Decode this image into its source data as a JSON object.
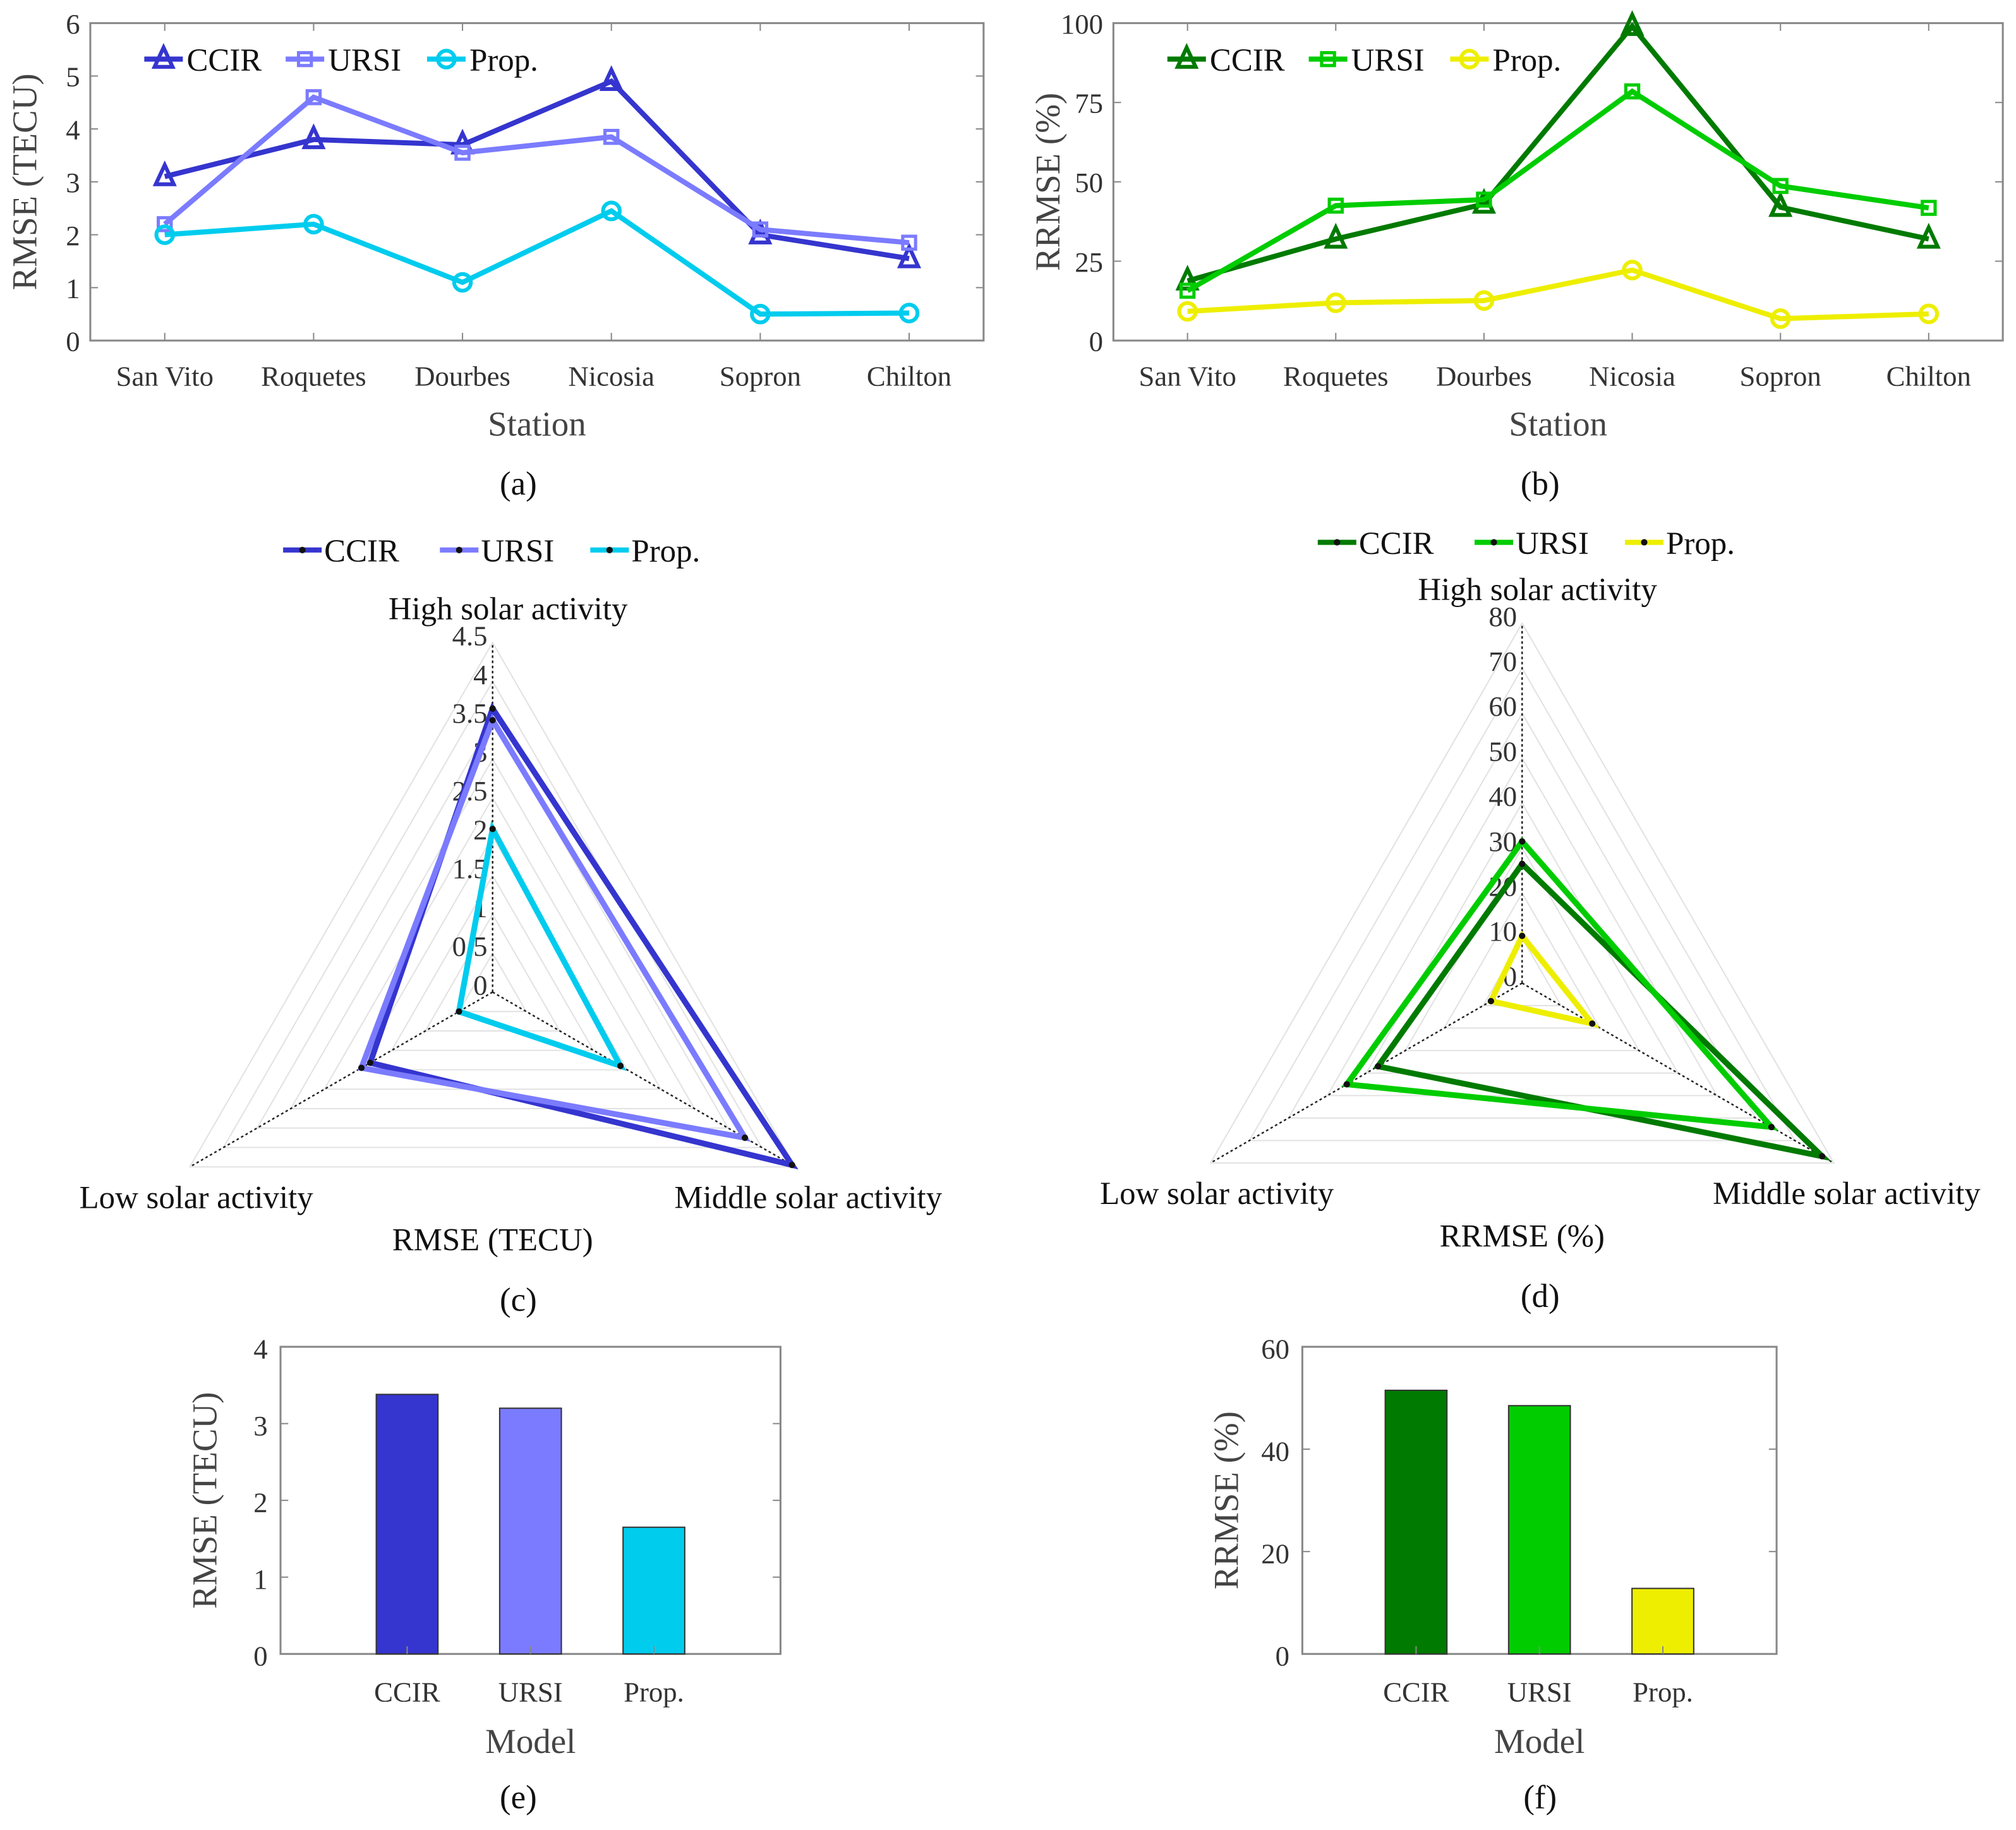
{
  "chart_data": [
    {
      "id": "a",
      "type": "line",
      "caption": "(a)",
      "categories": [
        "San  Vito",
        "Roquetes",
        "Dourbes",
        "Nicosia",
        "Sopron",
        "Chilton"
      ],
      "xlabel": "Station",
      "ylabel": "RMSE (TECU)",
      "ylim": [
        0,
        6
      ],
      "yticks": [
        0,
        1,
        2,
        3,
        4,
        5,
        6
      ],
      "grid": false,
      "legend": "top-left",
      "series": [
        {
          "name": "CCIR",
          "marker": "triangle",
          "color": "#3535cf",
          "values": [
            3.1,
            3.8,
            3.7,
            4.9,
            2.0,
            1.55
          ]
        },
        {
          "name": "URSI",
          "marker": "square",
          "color": "#7b7bff",
          "values": [
            2.2,
            4.6,
            3.55,
            3.85,
            2.1,
            1.85
          ]
        },
        {
          "name": "Prop.",
          "marker": "circle",
          "color": "#00ccee",
          "values": [
            2.0,
            2.2,
            1.1,
            2.45,
            0.5,
            0.52
          ]
        }
      ]
    },
    {
      "id": "b",
      "type": "line",
      "caption": "(b)",
      "categories": [
        "San  Vito",
        "Roquetes",
        "Dourbes",
        "Nicosia",
        "Sopron",
        "Chilton"
      ],
      "xlabel": "Station",
      "ylabel": "RRMSE (%)",
      "ylim": [
        0,
        100
      ],
      "yticks": [
        0,
        25,
        50,
        75,
        100
      ],
      "grid": false,
      "legend": "top-left",
      "series": [
        {
          "name": "CCIR",
          "marker": "triangle",
          "color": "#007a00",
          "values": [
            18.8,
            32,
            43,
            99,
            42,
            32
          ]
        },
        {
          "name": "URSI",
          "marker": "square",
          "color": "#00cc00",
          "values": [
            15.7,
            42.5,
            44.4,
            78.5,
            48.7,
            41.8
          ]
        },
        {
          "name": "Prop.",
          "marker": "circle",
          "color": "#eeee00",
          "values": [
            9.2,
            11.9,
            12.6,
            22.2,
            6.9,
            8.4
          ]
        }
      ]
    },
    {
      "id": "c",
      "type": "radar",
      "caption": "(c)",
      "axes": [
        "High solar activity",
        "Middle solar activity",
        "Low solar activity"
      ],
      "label": "RMSE (TECU)",
      "rlim": [
        0,
        4.5
      ],
      "rticks": [
        "0",
        "0.5",
        "1",
        "1.5",
        "2",
        "2.5",
        "3",
        "3.5",
        "4",
        "4.5"
      ],
      "legend": "top",
      "series": [
        {
          "name": "CCIR",
          "color": "#3535cf",
          "values": [
            3.65,
            4.45,
            1.82
          ]
        },
        {
          "name": "URSI",
          "color": "#7b7bff",
          "values": [
            3.5,
            3.75,
            1.95
          ]
        },
        {
          "name": "Prop.",
          "color": "#00ccee",
          "values": [
            2.1,
            1.9,
            0.5
          ]
        }
      ]
    },
    {
      "id": "d",
      "type": "radar",
      "caption": "(d)",
      "axes": [
        "High solar activity",
        "Middle solar activity",
        "Low solar activity"
      ],
      "label": "RRMSE (%)",
      "rlim": [
        0,
        80
      ],
      "rticks": [
        "0",
        "10",
        "20",
        "30",
        "40",
        "50",
        "60",
        "70",
        "80"
      ],
      "legend": "top",
      "series": [
        {
          "name": "CCIR",
          "color": "#007a00",
          "values": [
            26.5,
            77,
            37
          ]
        },
        {
          "name": "URSI",
          "color": "#00cc00",
          "values": [
            31.5,
            64,
            45
          ]
        },
        {
          "name": "Prop.",
          "color": "#eeee00",
          "values": [
            10.5,
            18,
            8
          ]
        }
      ]
    },
    {
      "id": "e",
      "type": "bar",
      "caption": "(e)",
      "categories": [
        "CCIR",
        "URSI",
        "Prop."
      ],
      "values": [
        3.38,
        3.2,
        1.65
      ],
      "colors": [
        "#3535cf",
        "#7b7bff",
        "#00ccee"
      ],
      "xlabel": "Model",
      "ylabel": "RMSE (TECU)",
      "ylim": [
        0,
        4
      ],
      "yticks": [
        0,
        1,
        2,
        3,
        4
      ]
    },
    {
      "id": "f",
      "type": "bar",
      "caption": "(f)",
      "categories": [
        "CCIR",
        "URSI",
        "Prop."
      ],
      "values": [
        51.5,
        48.5,
        12.8
      ],
      "colors": [
        "#007a00",
        "#00cc00",
        "#eeee00"
      ],
      "xlabel": "Model",
      "ylabel": "RRMSE (%)",
      "ylim": [
        0,
        60
      ],
      "yticks": [
        0,
        20,
        40,
        60
      ]
    }
  ]
}
